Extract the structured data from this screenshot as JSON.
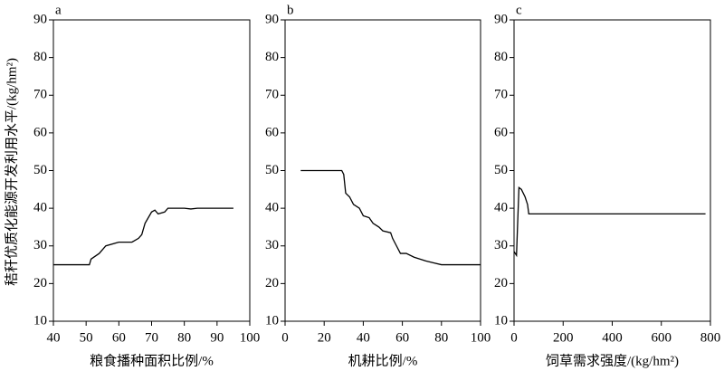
{
  "chart_data": [
    {
      "type": "line",
      "title": "a",
      "y_label": "秸秆优质化能源开发利用水平/(kg/hm²)",
      "x_label": "粮食播种面积比例/%",
      "x": [
        40,
        51,
        51.5,
        54,
        56,
        60,
        64,
        66,
        67,
        68,
        70,
        71,
        72,
        74,
        75,
        80,
        82,
        84,
        95
      ],
      "series": [
        {
          "color": "#000000",
          "values": [
            25,
            25,
            26.5,
            28,
            30,
            31,
            31,
            32,
            33,
            36,
            39,
            39.5,
            38.5,
            39,
            40,
            40,
            39.8,
            40,
            40
          ]
        }
      ],
      "xlim": [
        40,
        100
      ],
      "xticks": [
        40,
        50,
        60,
        70,
        80,
        90,
        100
      ],
      "ylim": [
        10,
        90
      ],
      "yticks": [
        10,
        20,
        30,
        40,
        50,
        60,
        70,
        80,
        90
      ]
    },
    {
      "type": "line",
      "title": "b",
      "x_label": "机耕比例/%",
      "x": [
        8,
        29,
        30,
        31,
        33,
        35,
        38,
        40,
        43,
        45,
        48,
        50,
        54,
        55,
        57,
        59,
        62,
        66,
        72,
        76,
        80,
        100
      ],
      "series": [
        {
          "color": "#000000",
          "values": [
            50,
            50,
            49,
            44,
            43,
            41,
            40,
            38,
            37.5,
            36,
            35,
            34,
            33.5,
            32,
            30,
            28,
            28,
            27,
            26,
            25.5,
            25,
            25
          ]
        }
      ],
      "xlim": [
        0,
        100
      ],
      "xticks": [
        0,
        20,
        40,
        60,
        80,
        100
      ],
      "ylim": [
        10,
        90
      ],
      "yticks": [
        10,
        20,
        30,
        40,
        50,
        60,
        70,
        80,
        90
      ]
    },
    {
      "type": "line",
      "title": "c",
      "x_label": "饲草需求强度/(kg/hm²)",
      "x": [
        0,
        10,
        20,
        30,
        45,
        55,
        60,
        780
      ],
      "series": [
        {
          "color": "#000000",
          "values": [
            28.5,
            27.5,
            45.5,
            45,
            43,
            41,
            38.5,
            38.5
          ]
        }
      ],
      "xlim": [
        0,
        800
      ],
      "xticks": [
        0,
        200,
        400,
        600,
        800
      ],
      "ylim": [
        10,
        90
      ],
      "yticks": [
        10,
        20,
        30,
        40,
        50,
        60,
        70,
        80,
        90
      ]
    }
  ]
}
